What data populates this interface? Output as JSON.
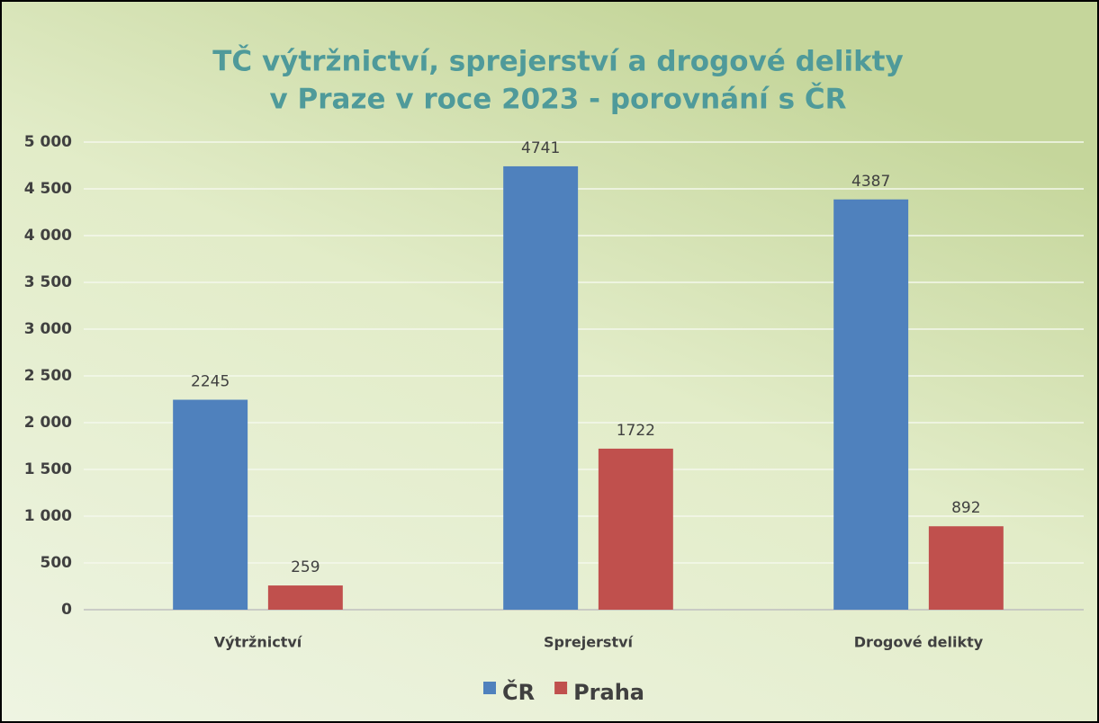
{
  "chart_data": {
    "type": "bar",
    "title": [
      "TČ výtržnictví, sprejerství a drogové delikty",
      "v Praze v roce 2023 - porovnání s ČR"
    ],
    "categories": [
      "Výtržnictví",
      "Sprejerství",
      "Drogové delikty"
    ],
    "series": [
      {
        "name": "ČR",
        "color": "#4f81bd",
        "values": [
          2245,
          4741,
          4387
        ]
      },
      {
        "name": "Praha",
        "color": "#c0504d",
        "values": [
          259,
          1722,
          892
        ]
      }
    ],
    "ylim": [
      0,
      5000
    ],
    "yticks": [
      0,
      500,
      {
        "value": 1000,
        "label": "1 000"
      },
      {
        "value": 1500,
        "label": "1 500"
      },
      {
        "value": 2000,
        "label": "2 000"
      },
      {
        "value": 2500,
        "label": "2 500"
      },
      {
        "value": 3000,
        "label": "3 000"
      },
      {
        "value": 3500,
        "label": "3 500"
      },
      {
        "value": 4000,
        "label": "4 000"
      },
      {
        "value": 4500,
        "label": "4 500"
      },
      {
        "value": 5000,
        "label": "5 000"
      }
    ],
    "grid": true,
    "legend": "bottom"
  }
}
